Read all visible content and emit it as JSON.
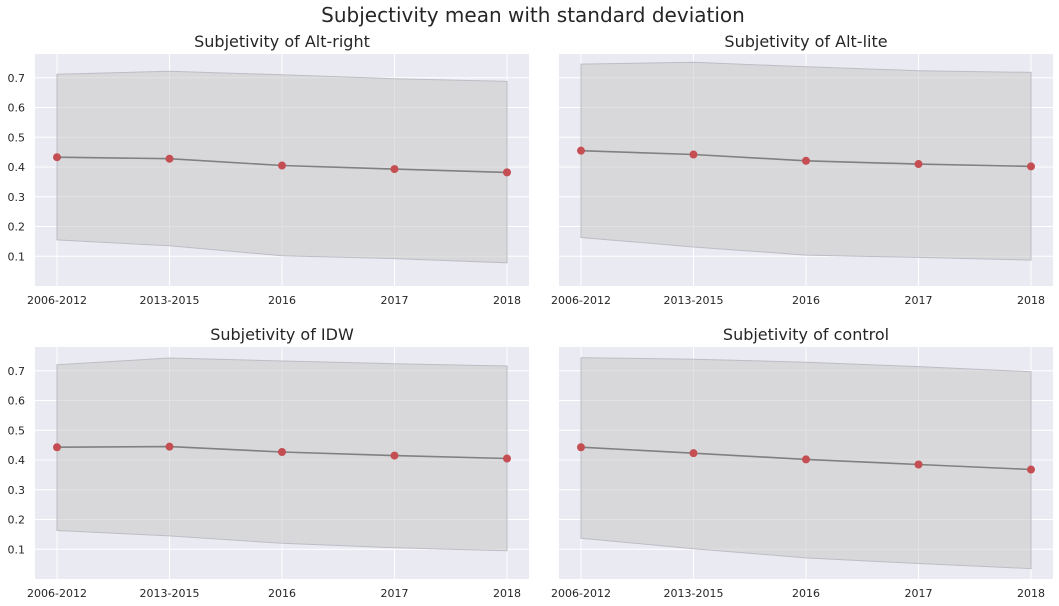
{
  "figure": {
    "title": "Subjectivity mean with standard deviation"
  },
  "style": {
    "axes_bg": "#eaeaf2",
    "grid": "#ffffff",
    "band_fill": "#c8c8c8",
    "band_edge": "#bdbdc6",
    "line": "#808080",
    "marker": "#c44e52",
    "text": "#262626"
  },
  "chart_data": [
    {
      "type": "line",
      "title": "Subjetivity of Alt-right",
      "categories": [
        "2006-2012",
        "2013-2015",
        "2016",
        "2017",
        "2018"
      ],
      "yticks": [
        "0.1",
        "0.2",
        "0.3",
        "0.4",
        "0.5",
        "0.6",
        "0.7"
      ],
      "ylim": [
        0.0,
        0.78
      ],
      "show_ytick_labels": true,
      "grid": true,
      "mean": [
        0.433,
        0.428,
        0.405,
        0.393,
        0.382
      ],
      "upper": [
        0.712,
        0.722,
        0.71,
        0.697,
        0.688
      ],
      "lower": [
        0.155,
        0.135,
        0.102,
        0.092,
        0.078
      ]
    },
    {
      "type": "line",
      "title": "Subjetivity of Alt-lite",
      "categories": [
        "2006-2012",
        "2013-2015",
        "2016",
        "2017",
        "2018"
      ],
      "yticks": [
        "0.1",
        "0.2",
        "0.3",
        "0.4",
        "0.5",
        "0.6",
        "0.7"
      ],
      "ylim": [
        0.0,
        0.78
      ],
      "show_ytick_labels": false,
      "grid": true,
      "mean": [
        0.455,
        0.442,
        0.421,
        0.41,
        0.402
      ],
      "upper": [
        0.746,
        0.752,
        0.737,
        0.724,
        0.718
      ],
      "lower": [
        0.163,
        0.131,
        0.104,
        0.096,
        0.087
      ]
    },
    {
      "type": "line",
      "title": "Subjetivity of IDW",
      "categories": [
        "2006-2012",
        "2013-2015",
        "2016",
        "2017",
        "2018"
      ],
      "yticks": [
        "0.1",
        "0.2",
        "0.3",
        "0.4",
        "0.5",
        "0.6",
        "0.7"
      ],
      "ylim": [
        0.0,
        0.78
      ],
      "show_ytick_labels": true,
      "grid": true,
      "mean": [
        0.443,
        0.445,
        0.427,
        0.415,
        0.405
      ],
      "upper": [
        0.72,
        0.743,
        0.733,
        0.724,
        0.716
      ],
      "lower": [
        0.163,
        0.145,
        0.12,
        0.105,
        0.095
      ]
    },
    {
      "type": "line",
      "title": "Subjetivity of control",
      "categories": [
        "2006-2012",
        "2013-2015",
        "2016",
        "2017",
        "2018"
      ],
      "yticks": [
        "0.1",
        "0.2",
        "0.3",
        "0.4",
        "0.5",
        "0.6",
        "0.7"
      ],
      "ylim": [
        0.0,
        0.78
      ],
      "show_ytick_labels": false,
      "grid": true,
      "mean": [
        0.443,
        0.423,
        0.402,
        0.385,
        0.368
      ],
      "upper": [
        0.744,
        0.739,
        0.729,
        0.714,
        0.697
      ],
      "lower": [
        0.137,
        0.102,
        0.071,
        0.052,
        0.035
      ]
    }
  ]
}
